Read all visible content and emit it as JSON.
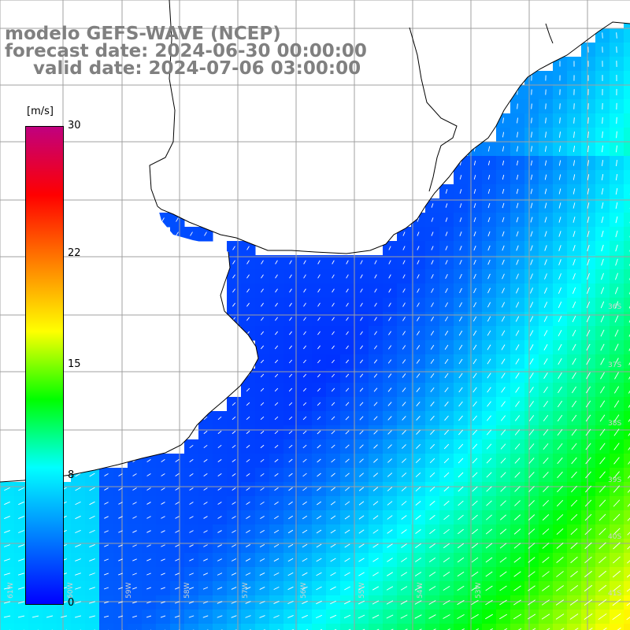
{
  "title": {
    "line1": "modelo GEFS-WAVE (NCEP)",
    "line2": "forecast date: 2024-06-30 00:00:00",
    "line3": "valid date: 2024-07-06 03:00:00"
  },
  "colorbar": {
    "unit": "[m/s]",
    "ticks": [
      "30",
      "22",
      "15",
      "8",
      "0"
    ],
    "tick_values": [
      30,
      22,
      15,
      8,
      0
    ],
    "min": 0,
    "max": 30,
    "colors": [
      "#0000ff",
      "#0080ff",
      "#00ffff",
      "#00ff00",
      "#ffff00",
      "#ff8000",
      "#ff0000",
      "#c0007f"
    ]
  },
  "map": {
    "variable": "wind speed",
    "field_colors": {
      "low": "#0030ff",
      "mid": "#00c0ff",
      "high": "#20ff20"
    },
    "land_color": "#ffffff",
    "coast_color": "#000000",
    "grid_color": "#a0a0a0",
    "lat_labels": [
      "36S",
      "37S",
      "38S",
      "39S",
      "40S",
      "41S"
    ],
    "lon_labels": [
      "61W",
      "60W",
      "59W",
      "58W",
      "57W",
      "56W",
      "55W",
      "54W",
      "53W"
    ]
  }
}
